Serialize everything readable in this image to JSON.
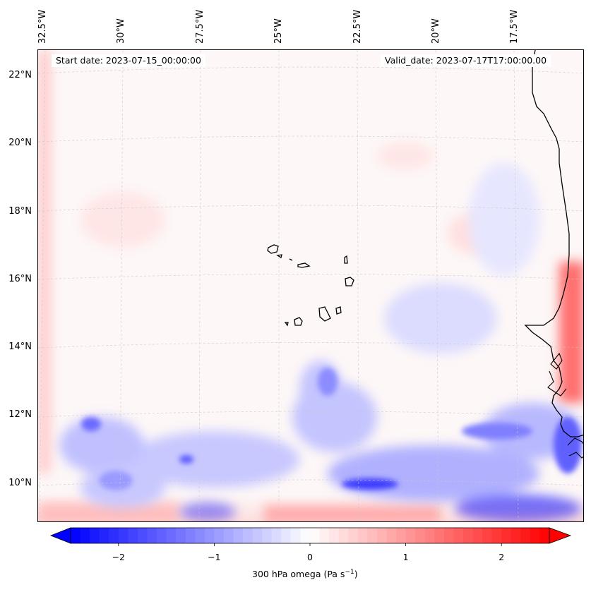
{
  "map": {
    "start_date": "Start date: 2023-07-15_00:00:00",
    "valid_date": "Valid_date: 2023-07-17T17:00:00.00",
    "lat_labels": [
      "22°N",
      "20°N",
      "18°N",
      "16°N",
      "14°N",
      "12°N",
      "10°N"
    ],
    "lon_labels": [
      "32.5°W",
      "30°W",
      "27.5°W",
      "25°W",
      "22.5°W",
      "20°W",
      "17.5°W"
    ],
    "colorbar": {
      "label_prefix": "300 hPa omega (Pa s",
      "label_exp": "−1",
      "label_suffix": ")",
      "ticks": [
        "−2",
        "−1",
        "0",
        "1",
        "2"
      ],
      "tick_values": [
        -2,
        -1,
        0,
        1,
        2
      ],
      "vmin": -2.5,
      "vmax": 2.5,
      "colors": {
        "low": "#0000ff",
        "mid": "#ffffff",
        "high": "#ff0000"
      }
    }
  }
}
